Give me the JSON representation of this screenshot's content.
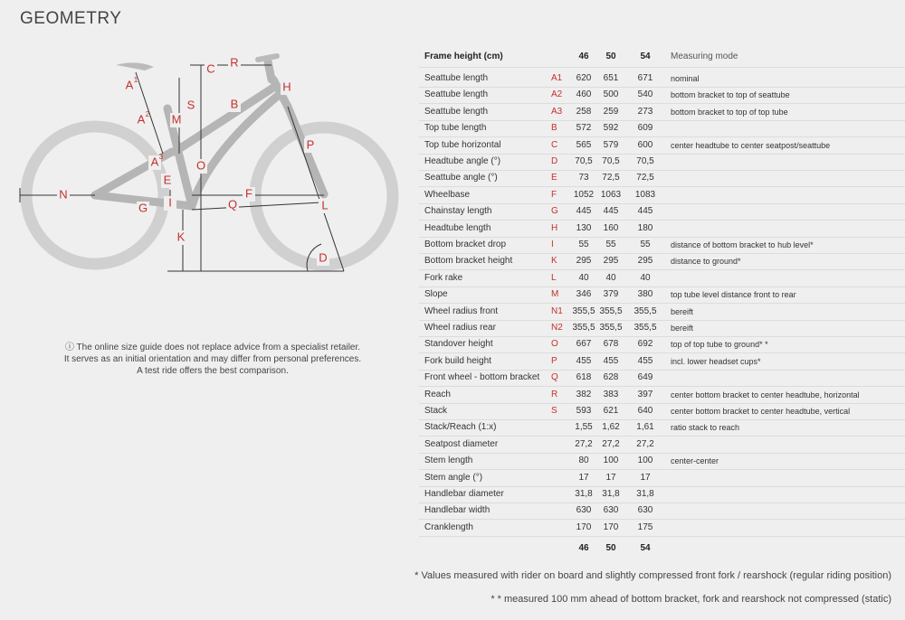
{
  "header": {
    "title": "GEOMETRY"
  },
  "diagram": {
    "labels": [
      {
        "text": "A",
        "sup": "1"
      },
      {
        "text": "C"
      },
      {
        "text": "R"
      },
      {
        "text": "H"
      },
      {
        "text": "S"
      },
      {
        "text": "B"
      },
      {
        "text": "A",
        "sup": "2"
      },
      {
        "text": "M"
      },
      {
        "text": "P"
      },
      {
        "text": "A",
        "sup": "3"
      },
      {
        "text": "O"
      },
      {
        "text": "E"
      },
      {
        "text": "N"
      },
      {
        "text": "F"
      },
      {
        "text": "G"
      },
      {
        "text": "I"
      },
      {
        "text": "Q"
      },
      {
        "text": "L"
      },
      {
        "text": "K"
      },
      {
        "text": "D"
      }
    ]
  },
  "note": "The online size guide does not replace advice from a specialist retailer. It serves as an initial orientation and may differ from personal preferences. A test ride offers the best comparison.",
  "table": {
    "header": {
      "label": "Frame height (cm)",
      "sizes": [
        "46",
        "50",
        "54"
      ],
      "mode": "Measuring mode"
    },
    "rows": [
      {
        "name": "Seattube length",
        "code": "A1",
        "values": [
          "620",
          "651",
          "671"
        ],
        "mode": "nominal"
      },
      {
        "name": "Seattube length",
        "code": "A2",
        "values": [
          "460",
          "500",
          "540"
        ],
        "mode": "bottom bracket to top of seattube"
      },
      {
        "name": "Seattube length",
        "code": "A3",
        "values": [
          "258",
          "259",
          "273"
        ],
        "mode": "bottom bracket to top of top tube"
      },
      {
        "name": "Top tube length",
        "code": "B",
        "values": [
          "572",
          "592",
          "609"
        ]
      },
      {
        "name": "Top tube horizontal",
        "code": "C",
        "values": [
          "565",
          "579",
          "600"
        ],
        "mode": "center headtube to center seatpost/seattube"
      },
      {
        "name": "Headtube angle (°)",
        "code": "D",
        "values": [
          "70,5",
          "70,5",
          "70,5"
        ]
      },
      {
        "name": "Seattube angle (°)",
        "code": "E",
        "values": [
          "73",
          "72,5",
          "72,5"
        ]
      },
      {
        "name": "Wheelbase",
        "code": "F",
        "values": [
          "1052",
          "1063",
          "1083"
        ]
      },
      {
        "name": "Chainstay length",
        "code": "G",
        "values": [
          "445",
          "445",
          "445"
        ]
      },
      {
        "name": "Headtube length",
        "code": "H",
        "values": [
          "130",
          "160",
          "180"
        ]
      },
      {
        "name": "Bottom bracket drop",
        "code": "I",
        "values": [
          "55",
          "55",
          "55"
        ],
        "mode": "distance of bottom bracket to hub level*"
      },
      {
        "name": "Bottom bracket height",
        "code": "K",
        "values": [
          "295",
          "295",
          "295"
        ],
        "mode": "distance to ground*"
      },
      {
        "name": "Fork rake",
        "code": "L",
        "values": [
          "40",
          "40",
          "40"
        ]
      },
      {
        "name": "Slope",
        "code": "M",
        "values": [
          "346",
          "379",
          "380"
        ],
        "mode": "top tube level distance front to rear"
      },
      {
        "name": "Wheel radius front",
        "code": "N1",
        "values": [
          "355,5",
          "355,5",
          "355,5"
        ],
        "mode": "bereift"
      },
      {
        "name": "Wheel radius rear",
        "code": "N2",
        "values": [
          "355,5",
          "355,5",
          "355,5"
        ],
        "mode": "bereift"
      },
      {
        "name": "Standover height",
        "code": "O",
        "values": [
          "667",
          "678",
          "692"
        ],
        "mode": "top of top tube to ground* *"
      },
      {
        "name": "Fork build height",
        "code": "P",
        "values": [
          "455",
          "455",
          "455"
        ],
        "mode": "incl. lower headset cups*"
      },
      {
        "name": "Front wheel - bottom bracket",
        "code": "Q",
        "values": [
          "618",
          "628",
          "649"
        ]
      },
      {
        "name": "Reach",
        "code": "R",
        "values": [
          "382",
          "383",
          "397"
        ],
        "mode": "center bottom bracket to center headtube, horizontal"
      },
      {
        "name": "Stack",
        "code": "S",
        "values": [
          "593",
          "621",
          "640"
        ],
        "mode": "center bottom bracket to center headtube, vertical"
      },
      {
        "name": "Stack/Reach (1:x)",
        "values": [
          "1,55",
          "1,62",
          "1,61"
        ],
        "mode": "ratio stack to reach"
      },
      {
        "name": "Seatpost diameter",
        "values": [
          "27,2",
          "27,2",
          "27,2"
        ]
      },
      {
        "name": "Stem length",
        "values": [
          "80",
          "100",
          "100"
        ],
        "mode": "center-center"
      },
      {
        "name": "Stem angle (°)",
        "values": [
          "17",
          "17",
          "17"
        ]
      },
      {
        "name": "Handlebar diameter",
        "values": [
          "31,8",
          "31,8",
          "31,8"
        ]
      },
      {
        "name": "Handlebar width",
        "values": [
          "630",
          "630",
          "630"
        ]
      },
      {
        "name": "Cranklength",
        "values": [
          "170",
          "170",
          "175"
        ]
      }
    ],
    "footer_sizes": [
      "46",
      "50",
      "54"
    ]
  },
  "footnotes": [
    "* Values measured with rider on board and slightly compressed front fork / rearshock (regular riding position)",
    "* * measured 100 mm ahead of bottom bracket, fork and rearshock not compressed (static)"
  ]
}
